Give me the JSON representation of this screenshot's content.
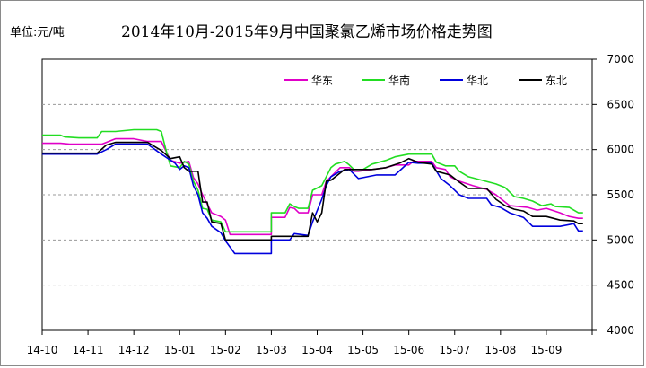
{
  "chart_data": {
    "type": "line",
    "title": "2014年10月-2015年9月中国聚氯乙烯市场价格走势图",
    "unit_label": "单位:元/吨",
    "xlabel": "",
    "ylabel": "",
    "y_axis_side": "right",
    "ylim": [
      4000,
      7000
    ],
    "y_ticks": [
      4000,
      4500,
      5000,
      5500,
      6000,
      6500,
      7000
    ],
    "y_grid": true,
    "x_ticks": [
      "14-10",
      "14-11",
      "14-12",
      "15-01",
      "15-02",
      "15-03",
      "15-04",
      "15-05",
      "15-06",
      "15-07",
      "15-08",
      "15-09"
    ],
    "legend_position": "top-right",
    "series": [
      {
        "name": "华东",
        "color": "#e000c8",
        "points": [
          [
            0.0,
            6070
          ],
          [
            0.4,
            6070
          ],
          [
            0.6,
            6060
          ],
          [
            1.0,
            6060
          ],
          [
            1.3,
            6060
          ],
          [
            1.4,
            6080
          ],
          [
            1.6,
            6120
          ],
          [
            2.0,
            6120
          ],
          [
            2.3,
            6090
          ],
          [
            2.6,
            6090
          ],
          [
            2.8,
            5880
          ],
          [
            3.0,
            5850
          ],
          [
            3.2,
            5870
          ],
          [
            3.3,
            5690
          ],
          [
            3.4,
            5620
          ],
          [
            3.5,
            5500
          ],
          [
            3.7,
            5300
          ],
          [
            3.9,
            5260
          ],
          [
            4.0,
            5220
          ],
          [
            4.1,
            5060
          ],
          [
            4.4,
            5060
          ],
          [
            4.6,
            5060
          ],
          [
            5.0,
            5060
          ],
          [
            5.0,
            5250
          ],
          [
            5.3,
            5250
          ],
          [
            5.4,
            5360
          ],
          [
            5.5,
            5350
          ],
          [
            5.6,
            5300
          ],
          [
            5.8,
            5300
          ],
          [
            5.9,
            5500
          ],
          [
            6.1,
            5500
          ],
          [
            6.2,
            5650
          ],
          [
            6.3,
            5700
          ],
          [
            6.5,
            5800
          ],
          [
            6.7,
            5800
          ],
          [
            6.8,
            5760
          ],
          [
            6.9,
            5760
          ],
          [
            7.2,
            5780
          ],
          [
            7.5,
            5800
          ],
          [
            7.7,
            5830
          ],
          [
            8.0,
            5830
          ],
          [
            8.1,
            5870
          ],
          [
            8.3,
            5870
          ],
          [
            8.5,
            5870
          ],
          [
            8.6,
            5800
          ],
          [
            8.8,
            5780
          ],
          [
            8.9,
            5700
          ],
          [
            9.1,
            5650
          ],
          [
            9.4,
            5600
          ],
          [
            9.7,
            5560
          ],
          [
            9.9,
            5500
          ],
          [
            10.2,
            5380
          ],
          [
            10.4,
            5370
          ],
          [
            10.6,
            5360
          ],
          [
            10.8,
            5330
          ],
          [
            11.0,
            5350
          ],
          [
            11.3,
            5300
          ],
          [
            11.5,
            5260
          ],
          [
            11.7,
            5240
          ],
          [
            11.8,
            5240
          ]
        ]
      },
      {
        "name": "华南",
        "color": "#22dd22",
        "points": [
          [
            0.0,
            6160
          ],
          [
            0.4,
            6160
          ],
          [
            0.5,
            6140
          ],
          [
            0.8,
            6130
          ],
          [
            1.2,
            6130
          ],
          [
            1.3,
            6200
          ],
          [
            1.6,
            6200
          ],
          [
            2.0,
            6220
          ],
          [
            2.5,
            6220
          ],
          [
            2.6,
            6200
          ],
          [
            2.7,
            6000
          ],
          [
            2.8,
            5820
          ],
          [
            3.0,
            5800
          ],
          [
            3.1,
            5870
          ],
          [
            3.2,
            5840
          ],
          [
            3.3,
            5650
          ],
          [
            3.4,
            5550
          ],
          [
            3.5,
            5350
          ],
          [
            3.6,
            5340
          ],
          [
            3.7,
            5220
          ],
          [
            3.9,
            5200
          ],
          [
            4.0,
            5090
          ],
          [
            4.3,
            5090
          ],
          [
            4.6,
            5090
          ],
          [
            5.0,
            5090
          ],
          [
            5.0,
            5300
          ],
          [
            5.3,
            5300
          ],
          [
            5.4,
            5400
          ],
          [
            5.5,
            5370
          ],
          [
            5.6,
            5350
          ],
          [
            5.8,
            5350
          ],
          [
            5.9,
            5550
          ],
          [
            6.1,
            5600
          ],
          [
            6.3,
            5800
          ],
          [
            6.4,
            5840
          ],
          [
            6.6,
            5870
          ],
          [
            6.7,
            5830
          ],
          [
            6.8,
            5780
          ],
          [
            7.0,
            5780
          ],
          [
            7.2,
            5840
          ],
          [
            7.5,
            5880
          ],
          [
            7.7,
            5920
          ],
          [
            8.0,
            5950
          ],
          [
            8.3,
            5950
          ],
          [
            8.5,
            5950
          ],
          [
            8.6,
            5860
          ],
          [
            8.8,
            5820
          ],
          [
            9.0,
            5820
          ],
          [
            9.1,
            5760
          ],
          [
            9.3,
            5700
          ],
          [
            9.6,
            5660
          ],
          [
            9.9,
            5620
          ],
          [
            10.1,
            5580
          ],
          [
            10.3,
            5480
          ],
          [
            10.5,
            5460
          ],
          [
            10.7,
            5430
          ],
          [
            10.9,
            5380
          ],
          [
            11.1,
            5400
          ],
          [
            11.2,
            5370
          ],
          [
            11.5,
            5360
          ],
          [
            11.7,
            5300
          ],
          [
            11.8,
            5300
          ]
        ]
      },
      {
        "name": "华北",
        "color": "#0000dd",
        "points": [
          [
            0.0,
            5950
          ],
          [
            0.4,
            5950
          ],
          [
            0.8,
            5950
          ],
          [
            1.2,
            5950
          ],
          [
            1.4,
            6000
          ],
          [
            1.6,
            6060
          ],
          [
            2.0,
            6060
          ],
          [
            2.3,
            6060
          ],
          [
            2.6,
            5950
          ],
          [
            2.9,
            5850
          ],
          [
            3.0,
            5780
          ],
          [
            3.1,
            5820
          ],
          [
            3.2,
            5800
          ],
          [
            3.3,
            5600
          ],
          [
            3.4,
            5500
          ],
          [
            3.5,
            5300
          ],
          [
            3.6,
            5240
          ],
          [
            3.7,
            5150
          ],
          [
            3.9,
            5080
          ],
          [
            4.0,
            4990
          ],
          [
            4.2,
            4850
          ],
          [
            4.6,
            4850
          ],
          [
            5.0,
            4850
          ],
          [
            5.0,
            5000
          ],
          [
            5.4,
            5000
          ],
          [
            5.5,
            5070
          ],
          [
            5.8,
            5050
          ],
          [
            5.9,
            5200
          ],
          [
            6.1,
            5450
          ],
          [
            6.2,
            5600
          ],
          [
            6.3,
            5700
          ],
          [
            6.5,
            5760
          ],
          [
            6.7,
            5780
          ],
          [
            6.9,
            5680
          ],
          [
            7.1,
            5700
          ],
          [
            7.3,
            5720
          ],
          [
            7.7,
            5720
          ],
          [
            8.0,
            5860
          ],
          [
            8.2,
            5850
          ],
          [
            8.5,
            5850
          ],
          [
            8.7,
            5680
          ],
          [
            8.9,
            5600
          ],
          [
            9.1,
            5500
          ],
          [
            9.3,
            5460
          ],
          [
            9.7,
            5460
          ],
          [
            9.8,
            5390
          ],
          [
            10.0,
            5360
          ],
          [
            10.2,
            5300
          ],
          [
            10.5,
            5250
          ],
          [
            10.7,
            5150
          ],
          [
            11.0,
            5150
          ],
          [
            11.3,
            5150
          ],
          [
            11.6,
            5180
          ],
          [
            11.7,
            5100
          ],
          [
            11.8,
            5100
          ]
        ]
      },
      {
        "name": "东北",
        "color": "#000000",
        "points": [
          [
            0.0,
            5960
          ],
          [
            0.4,
            5960
          ],
          [
            0.8,
            5960
          ],
          [
            1.2,
            5960
          ],
          [
            1.4,
            6050
          ],
          [
            1.6,
            6080
          ],
          [
            2.0,
            6080
          ],
          [
            2.3,
            6080
          ],
          [
            2.6,
            5990
          ],
          [
            2.8,
            5900
          ],
          [
            3.0,
            5920
          ],
          [
            3.1,
            5800
          ],
          [
            3.2,
            5760
          ],
          [
            3.4,
            5760
          ],
          [
            3.5,
            5420
          ],
          [
            3.6,
            5420
          ],
          [
            3.7,
            5200
          ],
          [
            3.9,
            5180
          ],
          [
            4.0,
            5000
          ],
          [
            4.3,
            5000
          ],
          [
            4.6,
            5000
          ],
          [
            5.0,
            5000
          ],
          [
            5.0,
            5040
          ],
          [
            5.3,
            5040
          ],
          [
            5.5,
            5040
          ],
          [
            5.8,
            5040
          ],
          [
            5.9,
            5300
          ],
          [
            6.0,
            5200
          ],
          [
            6.1,
            5300
          ],
          [
            6.2,
            5650
          ],
          [
            6.3,
            5660
          ],
          [
            6.4,
            5700
          ],
          [
            6.6,
            5780
          ],
          [
            6.8,
            5780
          ],
          [
            7.2,
            5780
          ],
          [
            7.5,
            5800
          ],
          [
            7.8,
            5850
          ],
          [
            8.0,
            5900
          ],
          [
            8.2,
            5860
          ],
          [
            8.5,
            5840
          ],
          [
            8.6,
            5760
          ],
          [
            8.9,
            5720
          ],
          [
            9.1,
            5640
          ],
          [
            9.3,
            5570
          ],
          [
            9.7,
            5570
          ],
          [
            9.9,
            5450
          ],
          [
            10.1,
            5380
          ],
          [
            10.3,
            5340
          ],
          [
            10.5,
            5320
          ],
          [
            10.7,
            5260
          ],
          [
            11.0,
            5260
          ],
          [
            11.3,
            5220
          ],
          [
            11.6,
            5210
          ],
          [
            11.7,
            5180
          ],
          [
            11.8,
            5180
          ]
        ]
      }
    ]
  }
}
